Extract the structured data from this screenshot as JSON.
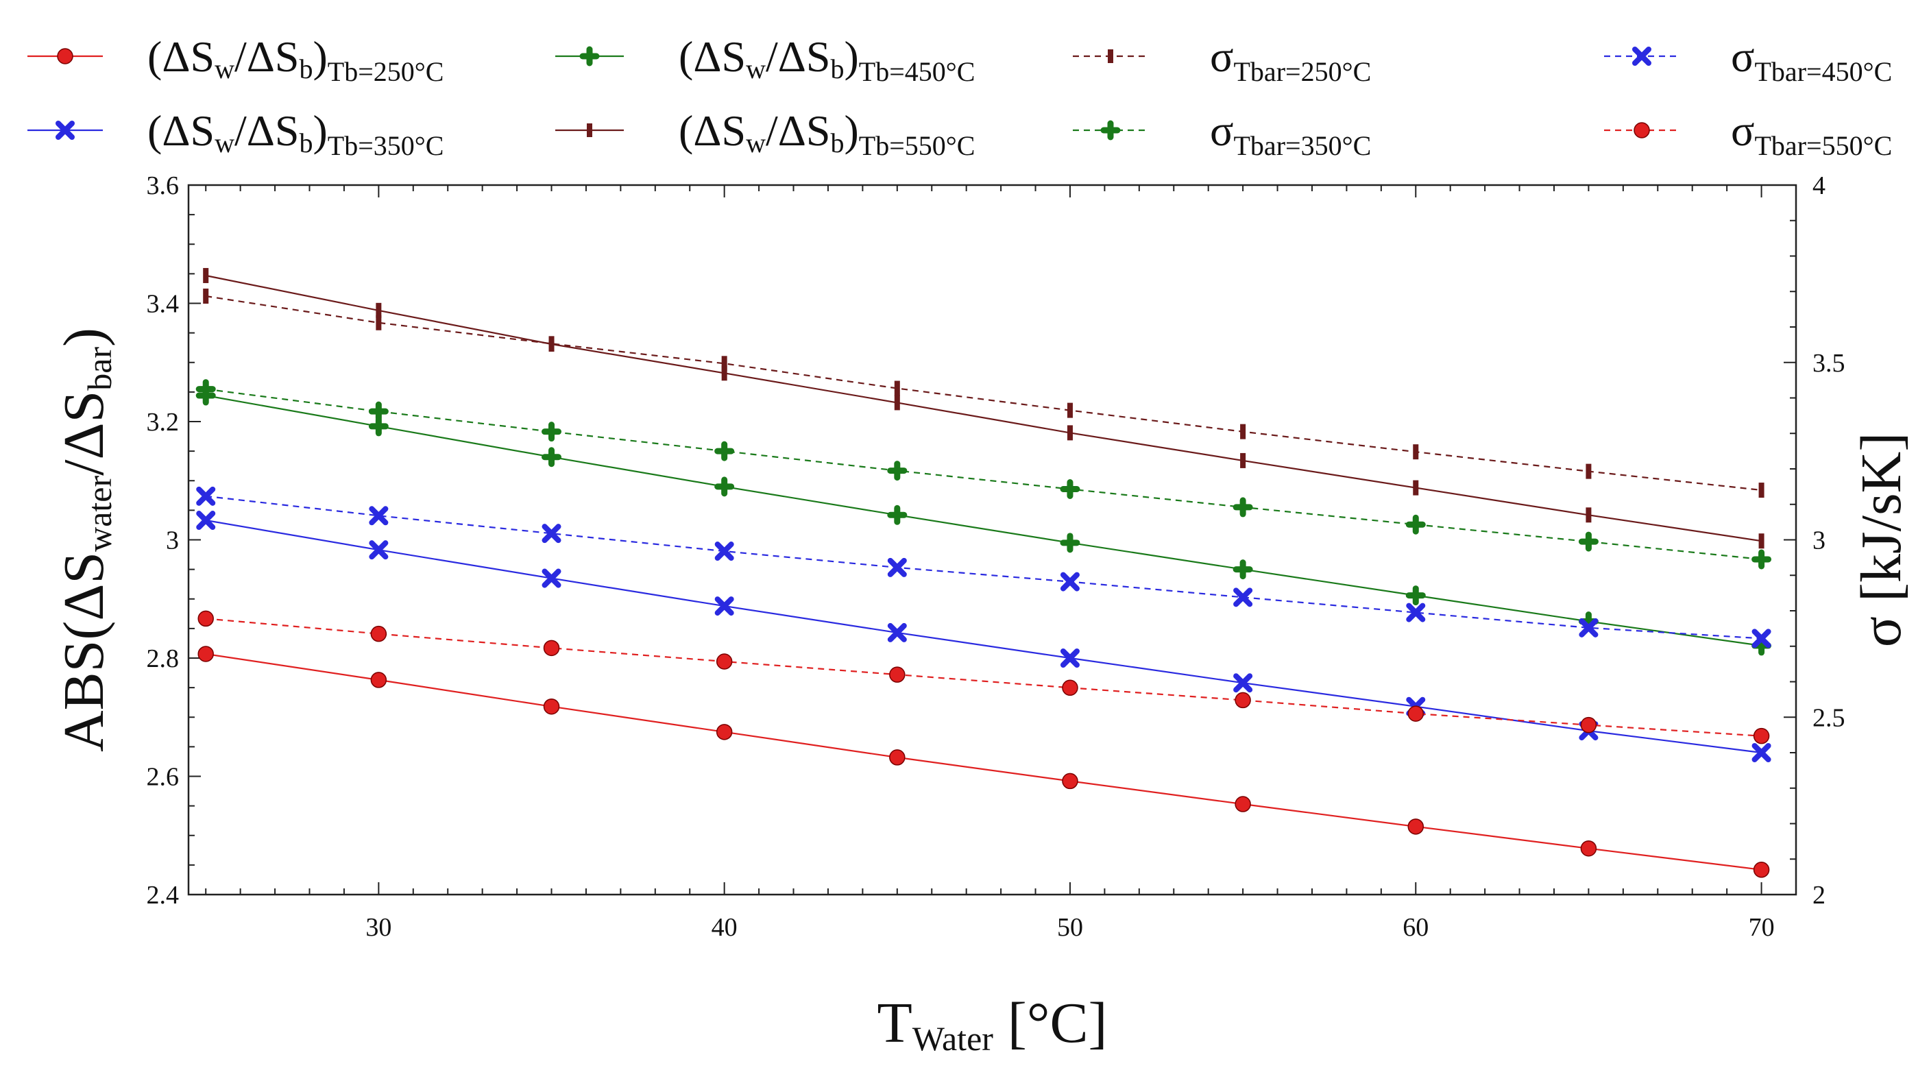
{
  "chart_data": {
    "type": "line",
    "x": [
      25,
      30,
      35,
      40,
      45,
      50,
      55,
      60,
      65,
      70
    ],
    "xlim": [
      24.5,
      71
    ],
    "xticks": [
      "30",
      "40",
      "50",
      "60",
      "70"
    ],
    "xtick_values": [
      30,
      40,
      50,
      60,
      70
    ],
    "xlabel": {
      "main": "T",
      "sub": "Water",
      "tail": " [°C]"
    },
    "y_left": {
      "lim": [
        2.4,
        3.6
      ],
      "ticks": [
        "2.4",
        "2.6",
        "2.8",
        "3",
        "3.2",
        "3.4",
        "3.6"
      ],
      "tick_values": [
        2.4,
        2.6,
        2.8,
        3.0,
        3.2,
        3.4,
        3.6
      ],
      "label": "ABS(ΔS_water/ΔS_bar)"
    },
    "y_right": {
      "lim": [
        2,
        4
      ],
      "ticks": [
        "2",
        "2.5",
        "3",
        "3.5",
        "4"
      ],
      "tick_values": [
        2,
        2.5,
        3,
        3.5,
        4
      ],
      "label": "σ [kJ/sK]"
    },
    "series": [
      {
        "name": "(ΔSw/ΔSb)Tb=250°C",
        "axis": "left",
        "style": "solid",
        "color": "#e02020",
        "marker": "circle",
        "values": [
          2.807,
          2.763,
          2.718,
          2.675,
          2.632,
          2.592,
          2.553,
          2.515,
          2.478,
          2.442
        ]
      },
      {
        "name": "(ΔSw/ΔSb)Tb=350°C",
        "axis": "left",
        "style": "solid",
        "color": "#2a2ae0",
        "marker": "x",
        "values": [
          3.033,
          2.983,
          2.935,
          2.888,
          2.843,
          2.8,
          2.758,
          2.718,
          2.677,
          2.64
        ]
      },
      {
        "name": "(ΔSw/ΔSb)Tb=450°C",
        "axis": "left",
        "style": "solid",
        "color": "#1a7a1a",
        "marker": "plus",
        "values": [
          3.244,
          3.192,
          3.14,
          3.09,
          3.042,
          2.995,
          2.95,
          2.906,
          2.862,
          2.821
        ]
      },
      {
        "name": "(ΔSw/ΔSb)Tb=550°C",
        "axis": "left",
        "style": "solid",
        "color": "#6b1a1a",
        "marker": "bar",
        "values": [
          3.447,
          3.388,
          3.331,
          3.282,
          3.232,
          3.181,
          3.134,
          3.088,
          3.042,
          2.998
        ]
      },
      {
        "name": "σTbar=250°C",
        "axis": "right",
        "style": "dashed",
        "color": "#6b1a1a",
        "marker": "bar",
        "values": [
          3.687,
          3.612,
          3.553,
          3.497,
          3.427,
          3.365,
          3.305,
          3.248,
          3.193,
          3.14
        ]
      },
      {
        "name": "σTbar=350°C",
        "axis": "right",
        "style": "dashed",
        "color": "#1a7a1a",
        "marker": "plus",
        "values": [
          3.425,
          3.362,
          3.305,
          3.25,
          3.195,
          3.143,
          3.092,
          3.043,
          2.995,
          2.945
        ]
      },
      {
        "name": "σTbar=450°C",
        "axis": "right",
        "style": "dashed",
        "color": "#2a2ae0",
        "marker": "x",
        "values": [
          3.123,
          3.068,
          3.018,
          2.968,
          2.922,
          2.882,
          2.838,
          2.795,
          2.752,
          2.722
        ]
      },
      {
        "name": "σTbar=550°C",
        "axis": "right",
        "style": "dashed",
        "color": "#e02020",
        "marker": "circle",
        "values": [
          2.778,
          2.735,
          2.695,
          2.657,
          2.62,
          2.583,
          2.548,
          2.51,
          2.478,
          2.447
        ]
      }
    ],
    "legend": [
      {
        "main": "(ΔS",
        "s1": "w",
        "mid": "/ΔS",
        "s2": "b",
        "close": ")",
        "tail": "Tb=250°C"
      },
      {
        "main": "(ΔS",
        "s1": "w",
        "mid": "/ΔS",
        "s2": "b",
        "close": ")",
        "tail": "Tb=350°C"
      },
      {
        "main": "(ΔS",
        "s1": "w",
        "mid": "/ΔS",
        "s2": "b",
        "close": ")",
        "tail": "Tb=450°C"
      },
      {
        "main": "(ΔS",
        "s1": "w",
        "mid": "/ΔS",
        "s2": "b",
        "close": ")",
        "tail": "Tb=550°C"
      },
      {
        "main": "σ",
        "tail": "Tbar=250°C"
      },
      {
        "main": "σ",
        "tail": "Tbar=350°C"
      },
      {
        "main": "σ",
        "tail": "Tbar=450°C"
      },
      {
        "main": "σ",
        "tail": "Tbar=550°C"
      }
    ],
    "ylabel_left_parts": {
      "pre": "ABS(ΔS",
      "s1": "water",
      "mid": "/ΔS",
      "s2": "bar",
      "post": ")"
    },
    "ylabel_right": "σ [kJ/sK]"
  }
}
